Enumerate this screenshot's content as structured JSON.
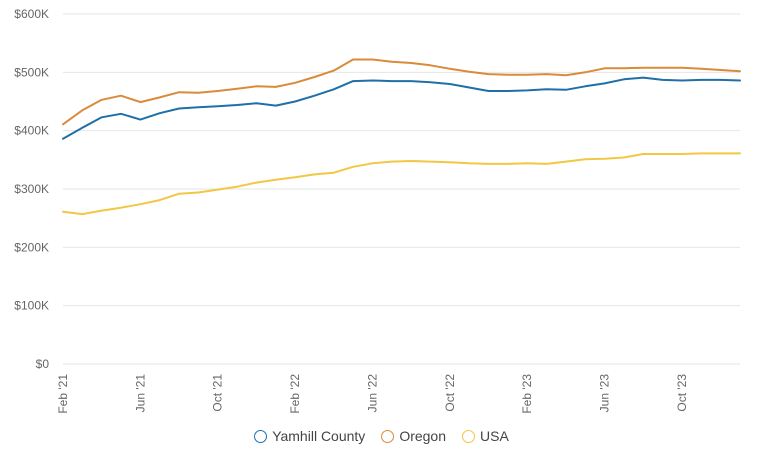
{
  "chart_data": {
    "type": "line",
    "title": "",
    "xlabel": "",
    "ylabel": "",
    "ylim": [
      0,
      600000
    ],
    "yticks": [
      0,
      100000,
      200000,
      300000,
      400000,
      500000,
      600000
    ],
    "ytick_labels": [
      "$0",
      "$100K",
      "$200K",
      "$300K",
      "$400K",
      "$500K",
      "$600K"
    ],
    "grid": true,
    "legend_position": "bottom",
    "x": [
      "Feb '21",
      "Mar '21",
      "Apr '21",
      "May '21",
      "Jun '21",
      "Jul '21",
      "Aug '21",
      "Sep '21",
      "Oct '21",
      "Nov '21",
      "Dec '21",
      "Jan '22",
      "Feb '22",
      "Mar '22",
      "Apr '22",
      "May '22",
      "Jun '22",
      "Jul '22",
      "Aug '22",
      "Sep '22",
      "Oct '22",
      "Nov '22",
      "Dec '22",
      "Jan '23",
      "Feb '23",
      "Mar '23",
      "Apr '23",
      "May '23",
      "Jun '23",
      "Jul '23",
      "Aug '23",
      "Sep '23",
      "Oct '23",
      "Nov '23",
      "Dec '23",
      "Jan '24"
    ],
    "xtick_labels": [
      "Feb '21",
      "Jun '21",
      "Oct '21",
      "Feb '22",
      "Jun '22",
      "Oct '22",
      "Feb '23",
      "Jun '23",
      "Oct '23"
    ],
    "xtick_indices": [
      0,
      4,
      8,
      12,
      16,
      20,
      24,
      28,
      32
    ],
    "series": [
      {
        "name": "Yamhill County",
        "color": "#1f6fa8",
        "values": [
          386000,
          405000,
          423000,
          429000,
          419000,
          430000,
          438000,
          440000,
          442000,
          444000,
          447000,
          443000,
          450000,
          460000,
          471000,
          485000,
          486000,
          485000,
          485000,
          483000,
          480000,
          474000,
          468000,
          468000,
          469000,
          471000,
          470000,
          476000,
          481000,
          488000,
          491000,
          487000,
          486000,
          487000,
          487000,
          486000
        ]
      },
      {
        "name": "Oregon",
        "color": "#d98b3a",
        "values": [
          411000,
          435000,
          453000,
          460000,
          449000,
          457000,
          466000,
          465000,
          468000,
          472000,
          476000,
          475000,
          482000,
          492000,
          503000,
          522000,
          522000,
          518000,
          516000,
          512000,
          506000,
          501000,
          497000,
          496000,
          496000,
          497000,
          495000,
          500000,
          507000,
          507000,
          508000,
          508000,
          508000,
          506000,
          504000,
          502000
        ]
      },
      {
        "name": "USA",
        "color": "#f2c744",
        "values": [
          261000,
          257000,
          263000,
          268000,
          274000,
          281000,
          292000,
          294000,
          299000,
          304000,
          311000,
          316000,
          320000,
          325000,
          328000,
          338000,
          344000,
          347000,
          348000,
          347000,
          346000,
          344000,
          343000,
          343000,
          344000,
          343000,
          347000,
          351000,
          352000,
          354000,
          360000,
          360000,
          360000,
          361000,
          361000,
          361000
        ]
      }
    ]
  },
  "legend": {
    "items": [
      {
        "label": "Yamhill County",
        "color": "#1f6fa8"
      },
      {
        "label": "Oregon",
        "color": "#d98b3a"
      },
      {
        "label": "USA",
        "color": "#f2c744"
      }
    ]
  }
}
